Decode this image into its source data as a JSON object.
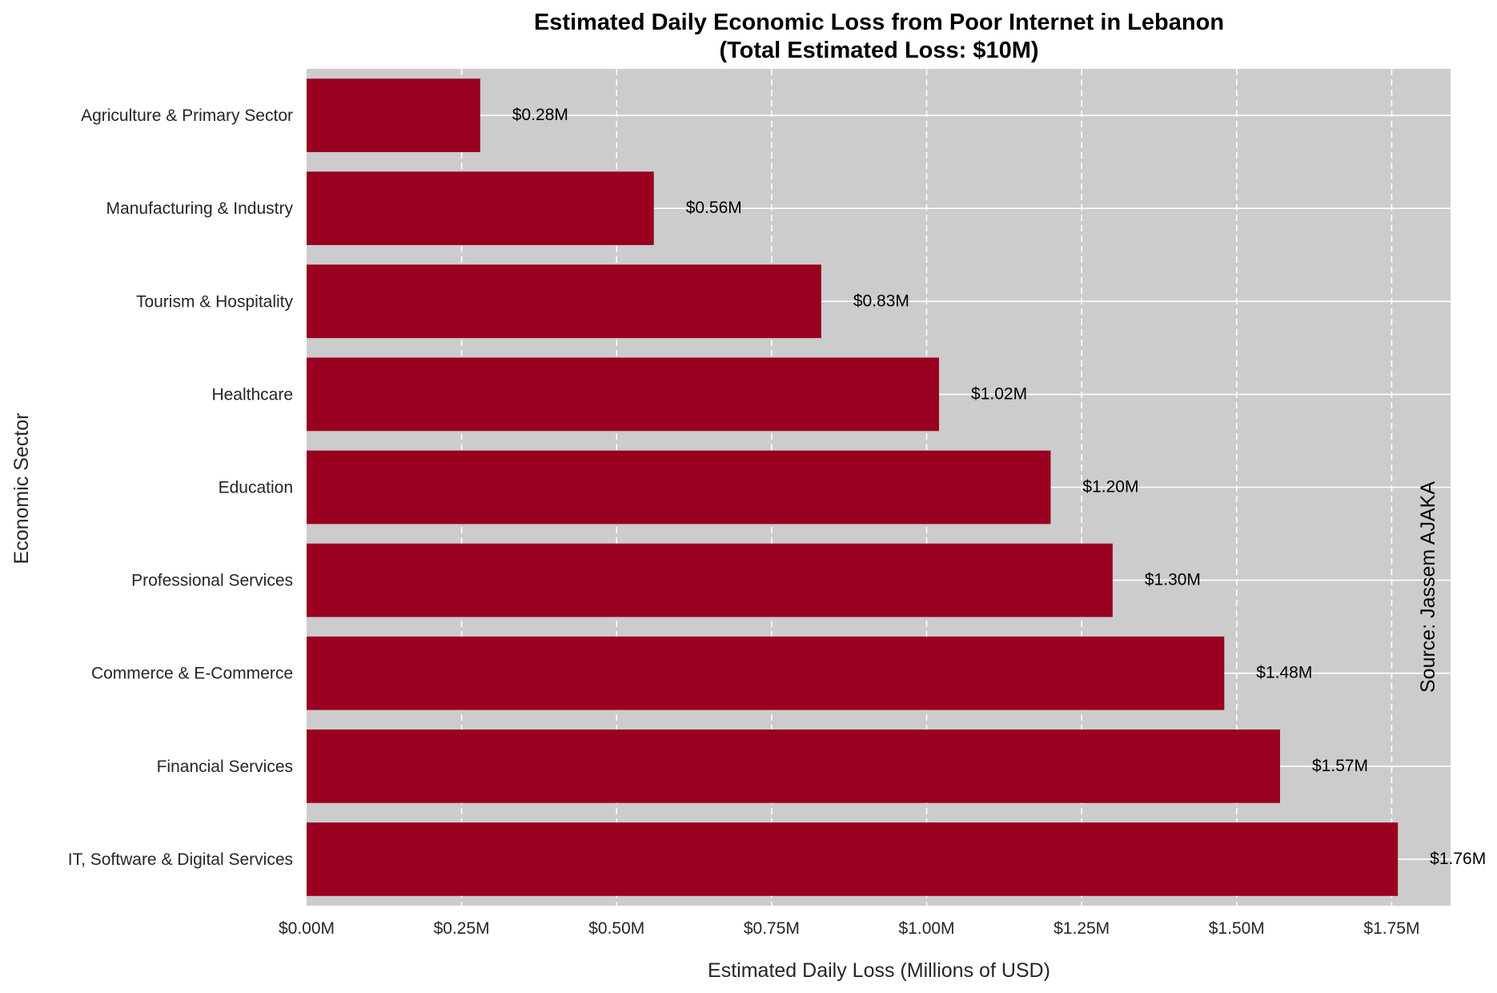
{
  "chart_data": {
    "type": "bar",
    "orientation": "horizontal",
    "title_line1": "Estimated Daily Economic Loss from Poor Internet in Lebanon",
    "title_line2": "(Total Estimated Loss: $10M)",
    "xlabel": "Estimated Daily Loss (Millions of USD)",
    "ylabel": "Economic Sector",
    "categories": [
      "Agriculture & Primary Sector",
      "Manufacturing & Industry",
      "Tourism & Hospitality",
      "Healthcare",
      "Education",
      "Professional Services",
      "Commerce & E-Commerce",
      "Financial Services",
      "IT, Software & Digital Services"
    ],
    "values": [
      0.28,
      0.56,
      0.83,
      1.02,
      1.2,
      1.3,
      1.48,
      1.57,
      1.76
    ],
    "value_labels": [
      "$0.28M",
      "$0.56M",
      "$0.83M",
      "$1.02M",
      "$1.20M",
      "$1.30M",
      "$1.48M",
      "$1.57M",
      "$1.76M"
    ],
    "xticks": [
      0,
      0.25,
      0.5,
      0.75,
      1.0,
      1.25,
      1.5,
      1.75
    ],
    "xtick_labels": [
      "$0.00M",
      "$0.25M",
      "$0.50M",
      "$0.75M",
      "$1.00M",
      "$1.25M",
      "$1.50M",
      "$1.75M"
    ],
    "xlim": [
      0,
      1.845
    ],
    "grid": true,
    "source_text": "Source: Jassem AJAKA",
    "colors": {
      "bar": "#990020",
      "plot_background": "#cccccc",
      "grid": "#ffffff"
    }
  }
}
